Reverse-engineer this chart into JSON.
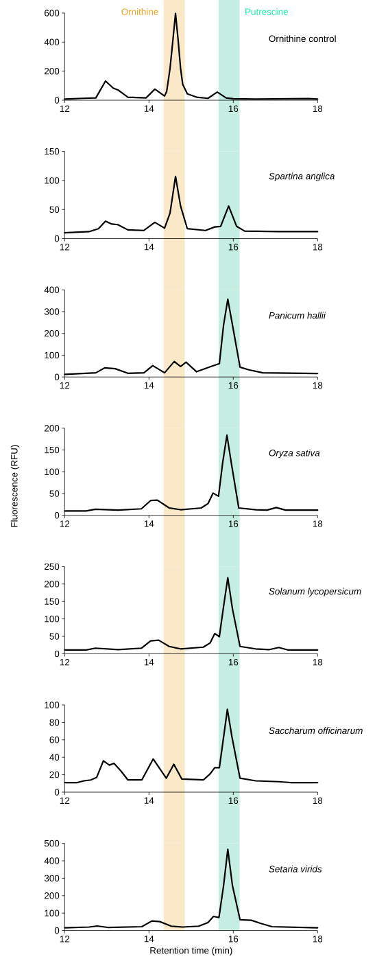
{
  "chart_data": [
    {
      "type": "line",
      "title": "Ornithine control",
      "xlim": [
        12,
        18
      ],
      "xticks": [
        12,
        14,
        16,
        18
      ],
      "ylim": [
        0,
        600
      ],
      "yticks": [
        0,
        200,
        400,
        600
      ],
      "x": [
        12,
        12.42,
        12.74,
        12.97,
        13.15,
        13.28,
        13.5,
        13.93,
        14.14,
        14.37,
        14.42,
        14.5,
        14.57,
        14.63,
        14.69,
        14.75,
        14.8,
        14.91,
        15.13,
        15.4,
        15.62,
        15.83,
        16.0,
        16.53,
        17.78,
        18
      ],
      "series": [
        {
          "color": "#000000",
          "values": [
            8,
            13,
            16,
            132,
            84,
            68,
            21,
            16,
            76,
            29,
            60,
            219,
            420,
            597,
            420,
            219,
            110,
            44,
            21,
            13,
            56,
            16,
            10,
            8,
            11,
            8
          ]
        }
      ],
      "bands": [
        {
          "axis": "x",
          "from": 14.35,
          "to": 14.85,
          "label": "Ornithine",
          "color": "#fae8c8"
        },
        {
          "axis": "x",
          "from": 15.65,
          "to": 16.15,
          "label": "Putrescine",
          "color": "#c5ede1"
        }
      ]
    },
    {
      "type": "line",
      "title": "Spartina anglica",
      "xlim": [
        12,
        18
      ],
      "xticks": [
        12,
        14,
        16,
        18
      ],
      "ylim": [
        0,
        150
      ],
      "yticks": [
        0,
        50,
        100,
        150
      ],
      "x": [
        12,
        12.58,
        12.8,
        12.97,
        13.12,
        13.26,
        13.5,
        13.88,
        14.14,
        14.37,
        14.5,
        14.63,
        14.75,
        14.91,
        15.34,
        15.56,
        15.7,
        15.89,
        16.08,
        16.27,
        17.08,
        18
      ],
      "series": [
        {
          "color": "#000000",
          "values": [
            10,
            12,
            17,
            30,
            25,
            24,
            15,
            14,
            28,
            18,
            44,
            107,
            56,
            17,
            14,
            20,
            21,
            56,
            21,
            13,
            12,
            12
          ]
        }
      ],
      "bands": [
        {
          "axis": "x",
          "from": 14.35,
          "to": 14.85,
          "color": "#fae8c8"
        },
        {
          "axis": "x",
          "from": 15.65,
          "to": 16.15,
          "color": "#c5ede1"
        }
      ]
    },
    {
      "type": "line",
      "title": "Panicum hallii",
      "xlim": [
        12,
        18
      ],
      "xticks": [
        12,
        14,
        16,
        18
      ],
      "ylim": [
        0,
        400
      ],
      "yticks": [
        0,
        100,
        200,
        300,
        400
      ],
      "x": [
        12,
        12.74,
        12.95,
        13.2,
        13.5,
        13.88,
        14.09,
        14.37,
        14.6,
        14.75,
        14.88,
        15.13,
        15.5,
        15.67,
        15.77,
        15.87,
        15.99,
        16.16,
        16.37,
        16.7,
        18
      ],
      "series": [
        {
          "color": "#000000",
          "values": [
            12,
            19,
            42,
            38,
            17,
            19,
            52,
            19,
            71,
            48,
            68,
            24,
            50,
            61,
            239,
            357,
            229,
            45,
            33,
            19,
            16
          ]
        }
      ],
      "bands": [
        {
          "axis": "x",
          "from": 14.35,
          "to": 14.85,
          "color": "#fae8c8"
        },
        {
          "axis": "x",
          "from": 15.65,
          "to": 16.15,
          "color": "#c5ede1"
        }
      ]
    },
    {
      "type": "line",
      "title": "Oryza sativa",
      "ylabel": "Fluorescence (RFU)",
      "xlim": [
        12,
        18
      ],
      "xticks": [
        12,
        14,
        16,
        18
      ],
      "ylim": [
        0,
        200
      ],
      "yticks": [
        0,
        50,
        100,
        150,
        200
      ],
      "x": [
        12,
        12.51,
        12.73,
        13.27,
        13.82,
        14.04,
        14.2,
        14.48,
        14.75,
        15.24,
        15.4,
        15.52,
        15.65,
        15.75,
        15.85,
        15.95,
        16.13,
        16.54,
        16.8,
        17.02,
        17.24,
        18
      ],
      "series": [
        {
          "color": "#000000",
          "values": [
            10,
            10,
            14,
            12,
            15,
            34,
            35,
            17,
            13,
            17,
            27,
            51,
            44,
            122,
            184,
            122,
            17,
            13,
            12,
            18,
            12,
            12
          ]
        }
      ],
      "bands": [
        {
          "axis": "x",
          "from": 14.35,
          "to": 14.85,
          "color": "#fae8c8"
        },
        {
          "axis": "x",
          "from": 15.65,
          "to": 16.15,
          "color": "#c5ede1"
        }
      ]
    },
    {
      "type": "line",
      "title": "Solanum lycopersicum",
      "xlim": [
        12,
        18
      ],
      "xticks": [
        12,
        14,
        16,
        18
      ],
      "ylim": [
        0,
        250
      ],
      "yticks": [
        0,
        50,
        100,
        150,
        200,
        250
      ],
      "x": [
        12,
        12.51,
        12.73,
        13.27,
        13.82,
        14.04,
        14.23,
        14.48,
        14.75,
        15.29,
        15.45,
        15.56,
        15.67,
        15.77,
        15.87,
        15.98,
        16.16,
        16.53,
        16.86,
        17.08,
        17.29,
        18
      ],
      "series": [
        {
          "color": "#000000",
          "values": [
            11,
            11,
            16,
            12,
            16,
            37,
            39,
            21,
            14,
            19,
            31,
            58,
            49,
            136,
            218,
            129,
            21,
            14,
            12,
            18,
            11,
            11
          ]
        }
      ],
      "bands": [
        {
          "axis": "x",
          "from": 14.35,
          "to": 14.85,
          "color": "#fae8c8"
        },
        {
          "axis": "x",
          "from": 15.65,
          "to": 16.15,
          "color": "#c5ede1"
        }
      ]
    },
    {
      "type": "line",
      "title": "Saccharum officinarum",
      "xlim": [
        12,
        18
      ],
      "xticks": [
        12,
        14,
        16,
        18
      ],
      "ylim": [
        0,
        100
      ],
      "yticks": [
        0,
        20,
        40,
        60,
        80,
        100
      ],
      "x": [
        12,
        12.3,
        12.46,
        12.62,
        12.76,
        12.92,
        13.06,
        13.17,
        13.34,
        13.5,
        13.83,
        14.1,
        14.41,
        14.59,
        14.78,
        15.29,
        15.45,
        15.56,
        15.67,
        15.77,
        15.86,
        15.97,
        16.16,
        16.53,
        17.08,
        17.35,
        18
      ],
      "series": [
        {
          "color": "#000000",
          "values": [
            11,
            11,
            13,
            14,
            17,
            36,
            31,
            33,
            24,
            14,
            14,
            38,
            16,
            32,
            15,
            14,
            21,
            28,
            28,
            63,
            95,
            63,
            16,
            13,
            12,
            11,
            11
          ]
        }
      ],
      "bands": [
        {
          "axis": "x",
          "from": 14.35,
          "to": 14.85,
          "color": "#fae8c8"
        },
        {
          "axis": "x",
          "from": 15.65,
          "to": 16.15,
          "color": "#c5ede1"
        }
      ]
    },
    {
      "type": "line",
      "title": "Setaria virids",
      "xlabel": "Retention time (min)",
      "xlim": [
        12,
        18
      ],
      "xticks": [
        12,
        14,
        16,
        18
      ],
      "ylim": [
        0,
        500
      ],
      "yticks": [
        0,
        100,
        200,
        300,
        400,
        500
      ],
      "x": [
        12,
        12.58,
        12.77,
        13.02,
        13.83,
        14.07,
        14.26,
        14.53,
        14.8,
        15.18,
        15.4,
        15.53,
        15.66,
        15.77,
        15.87,
        15.98,
        16.16,
        16.43,
        16.64,
        16.92,
        18
      ],
      "series": [
        {
          "color": "#000000",
          "values": [
            16,
            20,
            26,
            18,
            22,
            55,
            51,
            25,
            20,
            25,
            46,
            81,
            75,
            258,
            466,
            258,
            62,
            59,
            42,
            22,
            16
          ]
        }
      ],
      "bands": [
        {
          "axis": "x",
          "from": 14.35,
          "to": 14.85,
          "color": "#fae8c8"
        },
        {
          "axis": "x",
          "from": 15.65,
          "to": 16.15,
          "color": "#c5ede1"
        }
      ]
    }
  ]
}
